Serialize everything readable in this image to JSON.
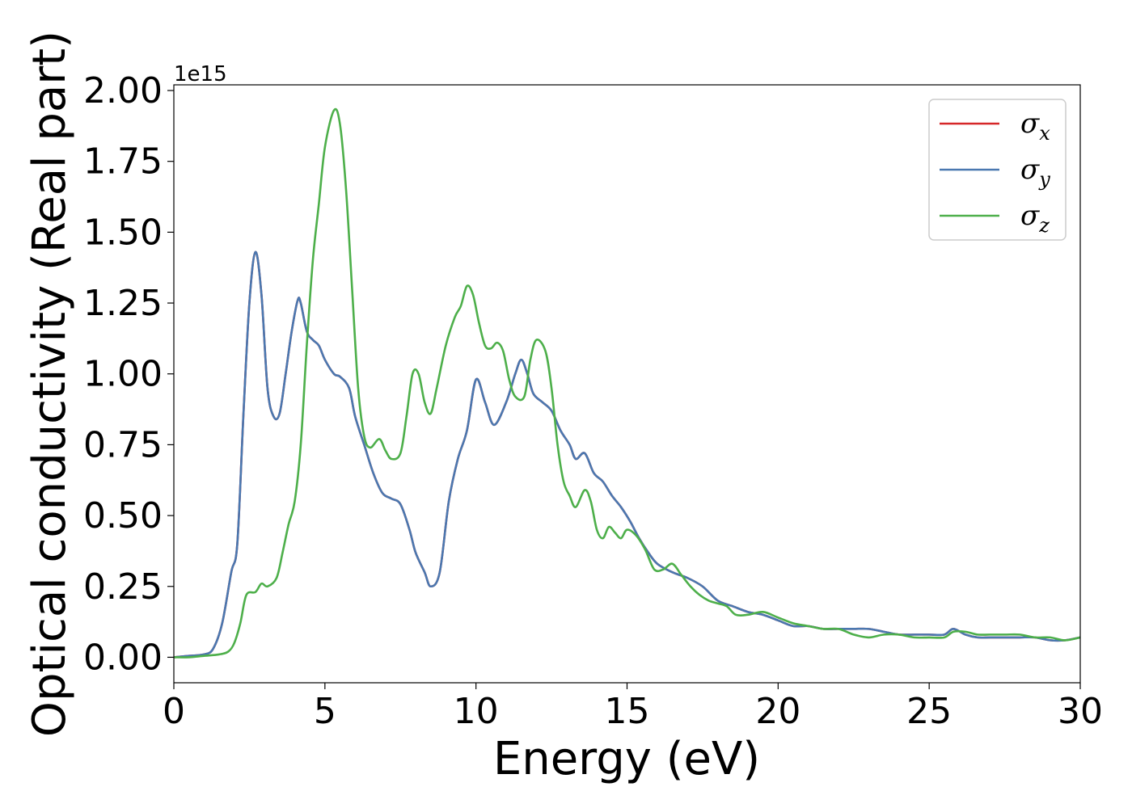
{
  "chart_data": {
    "type": "line",
    "xlabel": "Energy (eV)",
    "ylabel": "Optical conductivity (Real part)",
    "y_offset_label": "1e15",
    "xlim": [
      0,
      30
    ],
    "ylim": [
      -0.09,
      2.02
    ],
    "y_scale_factor": 1000000000000000.0,
    "xticks": [
      0,
      5,
      10,
      15,
      20,
      25,
      30
    ],
    "xtick_labels": [
      "0",
      "5",
      "10",
      "15",
      "20",
      "25",
      "30"
    ],
    "yticks": [
      0.0,
      0.25,
      0.5,
      0.75,
      1.0,
      1.25,
      1.5,
      1.75,
      2.0
    ],
    "ytick_labels": [
      "0.00",
      "0.25",
      "0.50",
      "0.75",
      "1.00",
      "1.25",
      "1.50",
      "1.75",
      "2.00"
    ],
    "grid": false,
    "legend_position": "top-right",
    "series": [
      {
        "name": "σ",
        "subscript": "x",
        "color": "#d62728",
        "x": [
          0,
          0.5,
          1.0,
          1.3,
          1.6,
          1.9,
          2.1,
          2.3,
          2.5,
          2.7,
          2.9,
          3.1,
          3.3,
          3.5,
          3.7,
          3.9,
          4.1,
          4.2,
          4.4,
          4.6,
          4.8,
          5.0,
          5.3,
          5.5,
          5.8,
          6.0,
          6.3,
          6.6,
          6.9,
          7.2,
          7.5,
          7.8,
          8.0,
          8.3,
          8.5,
          8.8,
          9.1,
          9.4,
          9.7,
          10.0,
          10.3,
          10.6,
          11.0,
          11.3,
          11.5,
          11.7,
          11.9,
          12.2,
          12.5,
          12.8,
          13.1,
          13.3,
          13.6,
          13.9,
          14.2,
          14.5,
          14.8,
          15.1,
          15.4,
          15.7,
          16.0,
          16.5,
          17.0,
          17.5,
          18.0,
          18.5,
          19.0,
          19.5,
          20.0,
          20.5,
          21.0,
          21.5,
          22.0,
          22.5,
          23.0,
          23.5,
          24.0,
          24.5,
          25.0,
          25.5,
          25.8,
          26.2,
          26.6,
          27.0,
          27.5,
          28.0,
          28.5,
          29.0,
          29.5,
          30.0
        ],
        "y": [
          0.0,
          0.005,
          0.01,
          0.03,
          0.12,
          0.3,
          0.4,
          0.85,
          1.25,
          1.43,
          1.28,
          0.95,
          0.85,
          0.86,
          1.0,
          1.15,
          1.26,
          1.25,
          1.15,
          1.12,
          1.1,
          1.05,
          1.0,
          0.99,
          0.95,
          0.85,
          0.75,
          0.65,
          0.58,
          0.56,
          0.54,
          0.45,
          0.37,
          0.3,
          0.25,
          0.3,
          0.55,
          0.7,
          0.8,
          0.98,
          0.9,
          0.82,
          0.9,
          1.0,
          1.05,
          1.0,
          0.93,
          0.9,
          0.87,
          0.8,
          0.75,
          0.7,
          0.72,
          0.65,
          0.62,
          0.57,
          0.53,
          0.48,
          0.42,
          0.37,
          0.33,
          0.3,
          0.28,
          0.25,
          0.2,
          0.18,
          0.16,
          0.15,
          0.13,
          0.11,
          0.11,
          0.1,
          0.1,
          0.1,
          0.1,
          0.09,
          0.08,
          0.08,
          0.08,
          0.08,
          0.1,
          0.08,
          0.07,
          0.07,
          0.07,
          0.07,
          0.07,
          0.06,
          0.06,
          0.07
        ]
      },
      {
        "name": "σ",
        "subscript": "y",
        "color": "#4a78b0",
        "x": [
          0,
          0.5,
          1.0,
          1.3,
          1.6,
          1.9,
          2.1,
          2.3,
          2.5,
          2.7,
          2.9,
          3.1,
          3.3,
          3.5,
          3.7,
          3.9,
          4.1,
          4.2,
          4.4,
          4.6,
          4.8,
          5.0,
          5.3,
          5.5,
          5.8,
          6.0,
          6.3,
          6.6,
          6.9,
          7.2,
          7.5,
          7.8,
          8.0,
          8.3,
          8.5,
          8.8,
          9.1,
          9.4,
          9.7,
          10.0,
          10.3,
          10.6,
          11.0,
          11.3,
          11.5,
          11.7,
          11.9,
          12.2,
          12.5,
          12.8,
          13.1,
          13.3,
          13.6,
          13.9,
          14.2,
          14.5,
          14.8,
          15.1,
          15.4,
          15.7,
          16.0,
          16.5,
          17.0,
          17.5,
          18.0,
          18.5,
          19.0,
          19.5,
          20.0,
          20.5,
          21.0,
          21.5,
          22.0,
          22.5,
          23.0,
          23.5,
          24.0,
          24.5,
          25.0,
          25.5,
          25.8,
          26.2,
          26.6,
          27.0,
          27.5,
          28.0,
          28.5,
          29.0,
          29.5,
          30.0
        ],
        "y": [
          0.0,
          0.005,
          0.01,
          0.03,
          0.12,
          0.3,
          0.4,
          0.85,
          1.25,
          1.43,
          1.28,
          0.95,
          0.85,
          0.86,
          1.0,
          1.15,
          1.26,
          1.25,
          1.15,
          1.12,
          1.1,
          1.05,
          1.0,
          0.99,
          0.95,
          0.85,
          0.75,
          0.65,
          0.58,
          0.56,
          0.54,
          0.45,
          0.37,
          0.3,
          0.25,
          0.3,
          0.55,
          0.7,
          0.8,
          0.98,
          0.9,
          0.82,
          0.9,
          1.0,
          1.05,
          1.0,
          0.93,
          0.9,
          0.87,
          0.8,
          0.75,
          0.7,
          0.72,
          0.65,
          0.62,
          0.57,
          0.53,
          0.48,
          0.42,
          0.37,
          0.33,
          0.3,
          0.28,
          0.25,
          0.2,
          0.18,
          0.16,
          0.15,
          0.13,
          0.11,
          0.11,
          0.1,
          0.1,
          0.1,
          0.1,
          0.09,
          0.08,
          0.08,
          0.08,
          0.08,
          0.1,
          0.08,
          0.07,
          0.07,
          0.07,
          0.07,
          0.07,
          0.06,
          0.06,
          0.07
        ]
      },
      {
        "name": "σ",
        "subscript": "z",
        "color": "#4daf4a",
        "x": [
          0,
          0.5,
          1.0,
          1.5,
          1.8,
          2.0,
          2.2,
          2.4,
          2.7,
          2.9,
          3.1,
          3.4,
          3.6,
          3.8,
          4.0,
          4.2,
          4.4,
          4.6,
          4.8,
          5.0,
          5.3,
          5.5,
          5.7,
          5.9,
          6.1,
          6.3,
          6.5,
          6.8,
          7.0,
          7.2,
          7.5,
          7.7,
          7.9,
          8.1,
          8.3,
          8.5,
          8.7,
          9.0,
          9.3,
          9.5,
          9.7,
          9.9,
          10.1,
          10.3,
          10.5,
          10.7,
          10.9,
          11.1,
          11.3,
          11.6,
          11.8,
          12.0,
          12.3,
          12.5,
          12.7,
          12.9,
          13.1,
          13.3,
          13.6,
          13.8,
          14.0,
          14.2,
          14.4,
          14.6,
          14.8,
          15.0,
          15.3,
          15.6,
          15.9,
          16.2,
          16.5,
          16.8,
          17.1,
          17.4,
          17.7,
          18.0,
          18.3,
          18.6,
          19.0,
          19.5,
          20.0,
          20.5,
          21.0,
          21.5,
          22.0,
          22.5,
          23.0,
          23.5,
          24.0,
          24.5,
          25.0,
          25.5,
          25.8,
          26.2,
          26.6,
          27.0,
          27.5,
          28.0,
          28.5,
          29.0,
          29.5,
          30.0
        ],
        "y": [
          0.0,
          0.0,
          0.005,
          0.01,
          0.02,
          0.05,
          0.12,
          0.22,
          0.23,
          0.26,
          0.25,
          0.28,
          0.37,
          0.47,
          0.55,
          0.75,
          1.1,
          1.4,
          1.6,
          1.8,
          1.93,
          1.88,
          1.65,
          1.3,
          0.95,
          0.78,
          0.74,
          0.77,
          0.73,
          0.7,
          0.72,
          0.85,
          1.0,
          1.0,
          0.9,
          0.86,
          0.95,
          1.1,
          1.2,
          1.24,
          1.31,
          1.28,
          1.18,
          1.1,
          1.09,
          1.11,
          1.08,
          0.98,
          0.92,
          0.92,
          1.05,
          1.12,
          1.08,
          0.95,
          0.75,
          0.62,
          0.57,
          0.53,
          0.59,
          0.55,
          0.45,
          0.42,
          0.46,
          0.44,
          0.42,
          0.45,
          0.43,
          0.38,
          0.31,
          0.31,
          0.33,
          0.29,
          0.25,
          0.22,
          0.2,
          0.19,
          0.18,
          0.15,
          0.15,
          0.16,
          0.14,
          0.12,
          0.11,
          0.1,
          0.1,
          0.08,
          0.07,
          0.08,
          0.08,
          0.07,
          0.07,
          0.07,
          0.09,
          0.09,
          0.08,
          0.08,
          0.08,
          0.08,
          0.07,
          0.07,
          0.06,
          0.07
        ]
      }
    ]
  }
}
